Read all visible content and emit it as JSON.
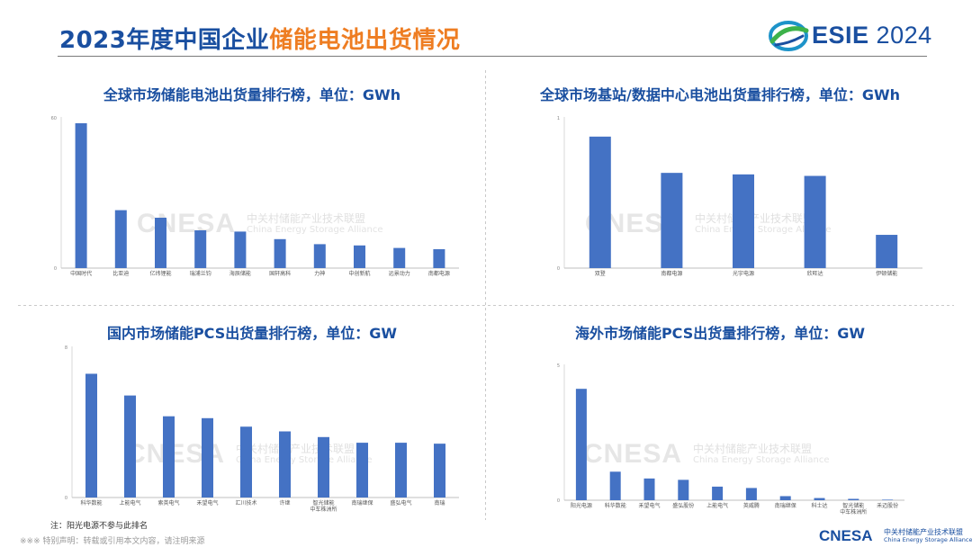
{
  "header": {
    "title_main": "2023年度中国企业",
    "title_accent": "储能电池出货情况",
    "logo_text_bold": "ESIE",
    "logo_text_year": "2024"
  },
  "watermark": {
    "brand": "CNESA",
    "cn": "中关村储能产业技术联盟",
    "en": "China Energy Storage Alliance"
  },
  "footer": {
    "note": "注：阳光电源不参与此排名",
    "disclaimer": "※※※ 特别声明：转载或引用本文内容，请注明来源",
    "brand": "CNESA",
    "cn": "中关村储能产业技术联盟",
    "en": "China Energy Storage Alliance"
  },
  "colors": {
    "bar": "#4472c4",
    "title": "#1a4fa0",
    "accent": "#ee7d22"
  },
  "chart_data": [
    {
      "type": "bar",
      "title": "全球市场储能电池出货量排行榜，单位：GWh",
      "categories": [
        "中国时代",
        "比亚迪",
        "亿纬锂能",
        "瑞浦兰钧",
        "海辰储能",
        "国轩高科",
        "力神",
        "中创新航",
        "远景动力",
        "南都电源"
      ],
      "values": [
        57.5,
        23,
        20,
        15,
        14.5,
        11.5,
        9.5,
        9,
        8,
        7.5
      ],
      "ytick_labels": [
        "60",
        "0"
      ],
      "ylim": [
        0,
        60
      ]
    },
    {
      "type": "bar",
      "title": "全球市场基站/数据中心电池出货量排行榜，单位：GWh",
      "categories": [
        "双登",
        "南都电源",
        "光宇电源",
        "欣旺达",
        "伊顿储能"
      ],
      "values": [
        0.87,
        0.63,
        0.62,
        0.61,
        0.22
      ],
      "ytick_labels": [
        "1",
        "0"
      ],
      "ylim": [
        0,
        1
      ]
    },
    {
      "type": "bar",
      "title": "国内市场储能PCS出货量排行榜，单位：GW",
      "categories": [
        "科华数能",
        "上能电气",
        "索英电气",
        "禾望电气",
        "汇川技术",
        "许继",
        "智光储能/中车株洲所",
        "南瑞继保",
        "盛弘电气",
        "南瑞"
      ],
      "values": [
        6.55,
        5.4,
        4.3,
        4.2,
        3.75,
        3.5,
        3.2,
        2.9,
        2.9,
        2.85
      ],
      "ytick_labels": [
        "8",
        "0"
      ],
      "ylim": [
        0,
        8
      ]
    },
    {
      "type": "bar",
      "title": "海外市场储能PCS出货量排行榜，单位：GW",
      "categories": [
        "阳光电源",
        "科华数能",
        "禾望电气",
        "盛弘股份",
        "上能电气",
        "英威腾",
        "南瑞继保",
        "科士达",
        "智光储能/中车株洲所",
        "禾迈股份"
      ],
      "values": [
        4.1,
        1.05,
        0.8,
        0.75,
        0.5,
        0.45,
        0.15,
        0.08,
        0.05,
        0.02
      ],
      "ytick_labels": [
        "5",
        "0"
      ],
      "ylim": [
        0,
        5
      ]
    }
  ]
}
